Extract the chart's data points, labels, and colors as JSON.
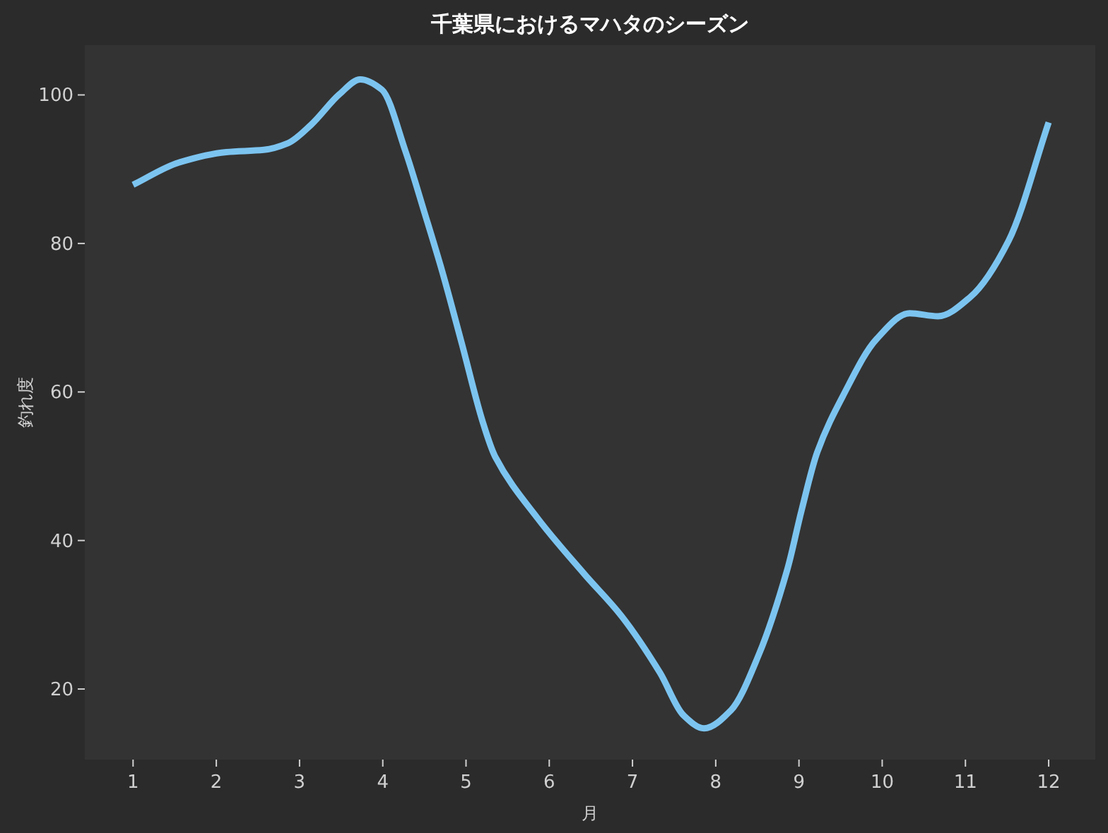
{
  "chart_data": {
    "type": "line",
    "title": "千葉県におけるマハタのシーズン",
    "xlabel": "月",
    "ylabel": "釣れ度",
    "xlim": [
      0.42,
      12.56
    ],
    "ylim": [
      10.5,
      106.7
    ],
    "xticks": [
      1,
      2,
      3,
      4,
      5,
      6,
      7,
      8,
      9,
      10,
      11,
      12
    ],
    "yticks": [
      20,
      40,
      60,
      80,
      100
    ],
    "series": [
      {
        "color": "#7cc4f0",
        "x": [
          1,
          1.55,
          2.12,
          2.57,
          2.86,
          3.14,
          3.48,
          3.73,
          3.99,
          4.27,
          4.5,
          4.72,
          4.95,
          5.2,
          5.35,
          5.86,
          6.42,
          6.87,
          7.33,
          7.61,
          7.86,
          8.18,
          8.52,
          8.86,
          9.03,
          9.22,
          9.53,
          9.93,
          10.33,
          10.67,
          11.06,
          11.52,
          12
        ],
        "values": [
          87.9,
          90.9,
          92.3,
          92.6,
          93.5,
          96,
          100.1,
          102.1,
          100.7,
          92.5,
          84.2,
          76,
          66.5,
          56,
          51.3,
          43,
          35.5,
          29.8,
          22.2,
          16.5,
          14.7,
          17.1,
          24.7,
          36.1,
          44,
          51.9,
          59.5,
          67.1,
          70.6,
          70.2,
          72.8,
          80.4,
          96.3
        ]
      }
    ]
  }
}
